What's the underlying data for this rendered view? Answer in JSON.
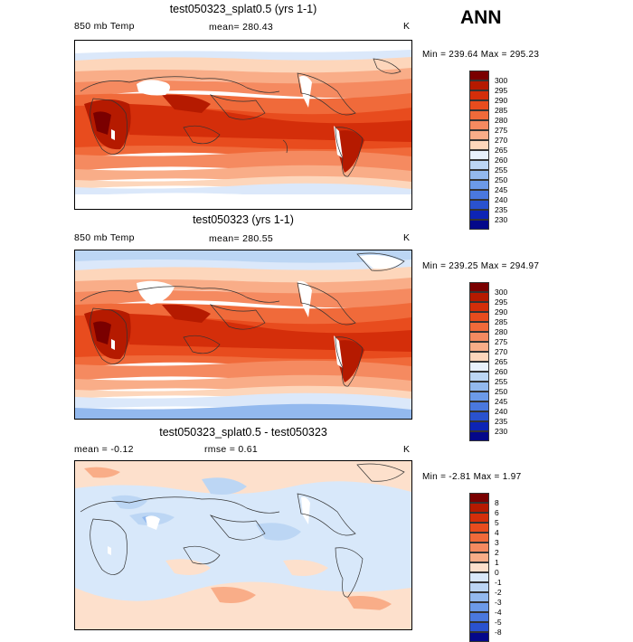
{
  "season": "ANN",
  "panels": [
    {
      "title": "test050323_splat0.5 (yrs 1-1)",
      "variable": "850 mb Temp",
      "stat1": "mean= 280.43",
      "stat2": "",
      "units": "K",
      "minmax": "Min = 239.64 Max = 295.23",
      "kind": "abs",
      "colorbar": {
        "labels": [
          "300",
          "295",
          "290",
          "285",
          "280",
          "275",
          "270",
          "265",
          "260",
          "255",
          "250",
          "245",
          "240",
          "235",
          "230"
        ],
        "colors": [
          "#7a0000",
          "#b51a00",
          "#d42e0a",
          "#e84c1e",
          "#f06a3a",
          "#f58a60",
          "#f9ad88",
          "#fdd6bb",
          "#e8f1fb",
          "#bcd6f4",
          "#93b9ee",
          "#6c9ae8",
          "#4a78de",
          "#2a52cf",
          "#0d24b5",
          "#04088a"
        ]
      }
    },
    {
      "title": "test050323 (yrs 1-1)",
      "variable": "850 mb Temp",
      "stat1": "mean= 280.55",
      "stat2": "",
      "units": "K",
      "minmax": "Min = 239.25 Max = 294.97",
      "kind": "abs",
      "colorbar": {
        "labels": [
          "300",
          "295",
          "290",
          "285",
          "280",
          "275",
          "270",
          "265",
          "260",
          "255",
          "250",
          "245",
          "240",
          "235",
          "230"
        ],
        "colors": [
          "#7a0000",
          "#b51a00",
          "#d42e0a",
          "#e84c1e",
          "#f06a3a",
          "#f58a60",
          "#f9ad88",
          "#fdd6bb",
          "#e8f1fb",
          "#bcd6f4",
          "#93b9ee",
          "#6c9ae8",
          "#4a78de",
          "#2a52cf",
          "#0d24b5",
          "#04088a"
        ]
      }
    },
    {
      "title": "test050323_splat0.5 - test050323",
      "variable": "",
      "stat1": "mean =   -0.12",
      "stat2": "rmse =    0.61",
      "units": "K",
      "minmax": "Min =  -2.81 Max =    1.97",
      "kind": "diff",
      "colorbar": {
        "labels": [
          "8",
          "6",
          "5",
          "4",
          "3",
          "2",
          "1",
          "0",
          "-1",
          "-2",
          "-3",
          "-4",
          "-5",
          "-8"
        ],
        "colors": [
          "#7a0000",
          "#b51a00",
          "#d42e0a",
          "#e84c1e",
          "#f06a3a",
          "#f58a60",
          "#f9ad88",
          "#fde0cc",
          "#d8e8fa",
          "#bcd6f4",
          "#93b9ee",
          "#6c9ae8",
          "#4a78de",
          "#2a52cf",
          "#04088a"
        ]
      }
    }
  ]
}
